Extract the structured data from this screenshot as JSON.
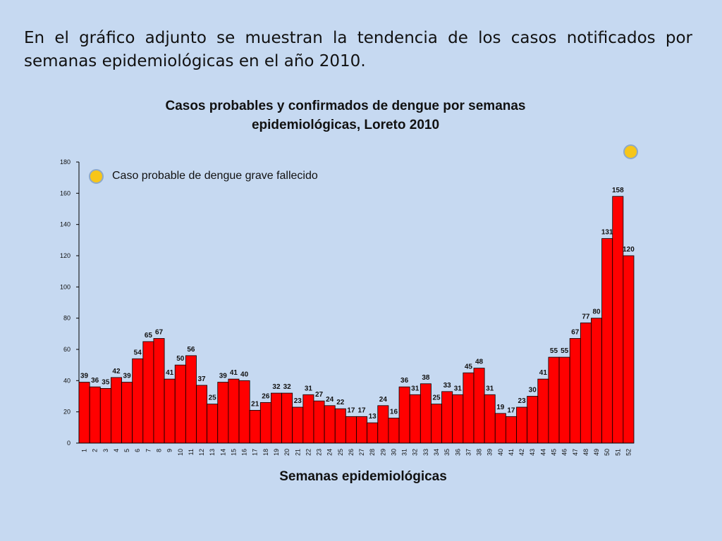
{
  "intro_text": "En el gráfico adjunto se muestran la tendencia de los casos notificados por semanas epidemiológicas en el año 2010.",
  "colors": {
    "bar": "#ff0000",
    "bar_stroke": "#000000",
    "marker_fill": "#f7c619",
    "marker_ring": "#8ea9c8",
    "background": "#c6d9f1"
  },
  "chart_data": {
    "type": "bar",
    "title": "Casos probables y confirmados de dengue por semanas epidemiológicas, Loreto 2010",
    "xlabel": "Semanas epidemiológicas",
    "ylabel": "",
    "ylim": [
      0,
      180
    ],
    "yticks": [
      0,
      20,
      40,
      60,
      80,
      100,
      120,
      140,
      160,
      180
    ],
    "grid": false,
    "categories": [
      "1",
      "2",
      "3",
      "4",
      "5",
      "6",
      "7",
      "8",
      "9",
      "10",
      "11",
      "12",
      "13",
      "14",
      "15",
      "16",
      "17",
      "18",
      "19",
      "20",
      "21",
      "22",
      "23",
      "24",
      "25",
      "26",
      "27",
      "28",
      "29",
      "30",
      "31",
      "32",
      "33",
      "34",
      "35",
      "36",
      "37",
      "38",
      "39",
      "40",
      "41",
      "42",
      "43",
      "44",
      "45",
      "46",
      "47",
      "48",
      "49",
      "50",
      "51",
      "52"
    ],
    "values": [
      39,
      36,
      35,
      42,
      39,
      54,
      65,
      67,
      41,
      50,
      56,
      37,
      25,
      39,
      41,
      40,
      21,
      26,
      32,
      32,
      23,
      31,
      27,
      24,
      22,
      17,
      17,
      13,
      24,
      16,
      36,
      31,
      38,
      25,
      33,
      31,
      45,
      48,
      31,
      19,
      17,
      23,
      30,
      41,
      55,
      55,
      67,
      77,
      80,
      131,
      158,
      120
    ],
    "legend": {
      "label": "Caso probable de dengue grave fallecido",
      "icon": "circle-marker",
      "position": "top-left"
    },
    "annotations": [
      {
        "type": "circle-marker",
        "week": "52"
      }
    ]
  }
}
